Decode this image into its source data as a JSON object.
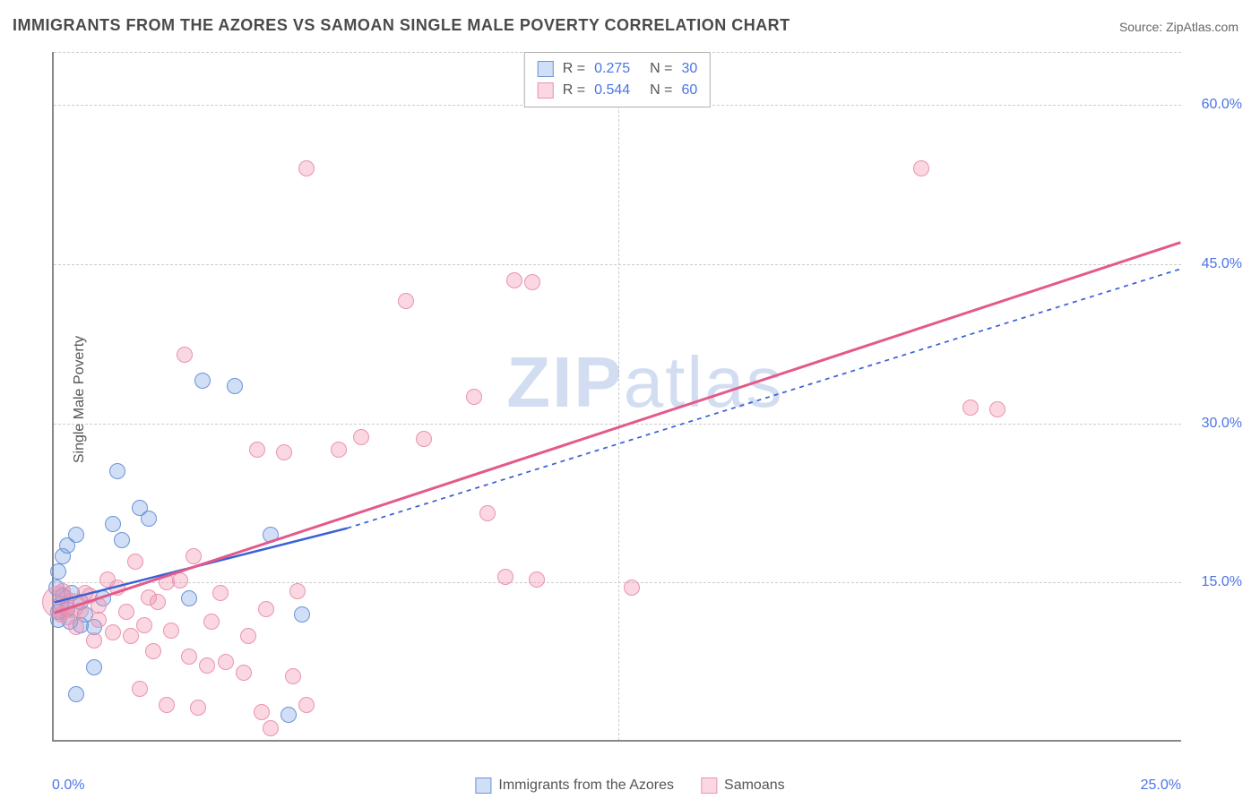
{
  "title": "IMMIGRANTS FROM THE AZORES VS SAMOAN SINGLE MALE POVERTY CORRELATION CHART",
  "source": "Source: ZipAtlas.com",
  "ylabel": "Single Male Poverty",
  "watermark_zip": "ZIP",
  "watermark_atlas": "atlas",
  "chart": {
    "type": "scatter",
    "xlim": [
      0,
      25
    ],
    "ylim": [
      0,
      65
    ],
    "xticks": [
      {
        "v": 0,
        "label": "0.0%"
      },
      {
        "v": 25,
        "label": "25.0%"
      }
    ],
    "yticks": [
      {
        "v": 15,
        "label": "15.0%"
      },
      {
        "v": 30,
        "label": "30.0%"
      },
      {
        "v": 45,
        "label": "45.0%"
      },
      {
        "v": 60,
        "label": "60.0%"
      }
    ],
    "vgrid": [
      12.5
    ],
    "grid_color": "#cccccc",
    "background_color": "#ffffff",
    "axis_color": "#888888",
    "tick_color": "#4a74e8",
    "series": [
      {
        "name": "Immigrants from the Azores",
        "key": "azores",
        "fill": "rgba(120,160,230,0.35)",
        "stroke": "#6a94d8",
        "marker_radius": 9,
        "R": "0.275",
        "N": "30",
        "trend": {
          "x1": 0,
          "y1": 13,
          "x2": 6.5,
          "y2": 20,
          "extend_x": 25,
          "extend_y": 44.5,
          "color": "#3a62d6",
          "dash": "5,5",
          "width": 2.5
        },
        "points": [
          {
            "x": 0.2,
            "y": 17.5
          },
          {
            "x": 0.3,
            "y": 18.5
          },
          {
            "x": 0.1,
            "y": 16
          },
          {
            "x": 0.5,
            "y": 19.5
          },
          {
            "x": 0.15,
            "y": 13
          },
          {
            "x": 0.3,
            "y": 12.5
          },
          {
            "x": 0.1,
            "y": 11.5
          },
          {
            "x": 0.7,
            "y": 12
          },
          {
            "x": 0.6,
            "y": 11
          },
          {
            "x": 0.9,
            "y": 10.8
          },
          {
            "x": 1.4,
            "y": 25.5
          },
          {
            "x": 1.3,
            "y": 20.5
          },
          {
            "x": 1.5,
            "y": 19
          },
          {
            "x": 0.4,
            "y": 14
          },
          {
            "x": 0.2,
            "y": 13.8
          },
          {
            "x": 0.05,
            "y": 14.5
          },
          {
            "x": 1.1,
            "y": 13.5
          },
          {
            "x": 0.9,
            "y": 7
          },
          {
            "x": 0.5,
            "y": 4.5
          },
          {
            "x": 1.9,
            "y": 22
          },
          {
            "x": 2.1,
            "y": 21
          },
          {
            "x": 3.3,
            "y": 34
          },
          {
            "x": 4.0,
            "y": 33.5
          },
          {
            "x": 4.8,
            "y": 19.5
          },
          {
            "x": 5.5,
            "y": 12
          },
          {
            "x": 5.2,
            "y": 2.5
          },
          {
            "x": 3.0,
            "y": 13.5
          },
          {
            "x": 0.1,
            "y": 12.2
          },
          {
            "x": 0.35,
            "y": 11.3
          },
          {
            "x": 0.6,
            "y": 13.2
          }
        ]
      },
      {
        "name": "Samoans",
        "key": "samoans",
        "fill": "rgba(240,140,170,0.35)",
        "stroke": "#e994b0",
        "marker_radius": 9,
        "R": "0.544",
        "N": "60",
        "trend": {
          "x1": 0,
          "y1": 12,
          "x2": 25,
          "y2": 47,
          "color": "#e35a8a",
          "width": 3
        },
        "points": [
          {
            "x": 0.1,
            "y": 13.2,
            "r": 18
          },
          {
            "x": 0.4,
            "y": 12.8,
            "r": 14
          },
          {
            "x": 0.2,
            "y": 14.2
          },
          {
            "x": 0.7,
            "y": 14
          },
          {
            "x": 1.0,
            "y": 12.8
          },
          {
            "x": 1.4,
            "y": 14.5
          },
          {
            "x": 1.6,
            "y": 12.2
          },
          {
            "x": 2.1,
            "y": 13.6
          },
          {
            "x": 2.5,
            "y": 15
          },
          {
            "x": 2.0,
            "y": 11
          },
          {
            "x": 1.3,
            "y": 10.3
          },
          {
            "x": 1.7,
            "y": 10
          },
          {
            "x": 0.9,
            "y": 9.5
          },
          {
            "x": 2.2,
            "y": 8.5
          },
          {
            "x": 2.6,
            "y": 10.5
          },
          {
            "x": 3.0,
            "y": 8
          },
          {
            "x": 3.4,
            "y": 7.2
          },
          {
            "x": 3.8,
            "y": 7.5
          },
          {
            "x": 1.9,
            "y": 5
          },
          {
            "x": 4.2,
            "y": 6.5
          },
          {
            "x": 2.5,
            "y": 3.5
          },
          {
            "x": 3.2,
            "y": 3.2
          },
          {
            "x": 4.6,
            "y": 2.8
          },
          {
            "x": 4.8,
            "y": 1.3
          },
          {
            "x": 5.6,
            "y": 3.5
          },
          {
            "x": 5.3,
            "y": 6.2
          },
          {
            "x": 1.8,
            "y": 17
          },
          {
            "x": 3.1,
            "y": 17.5
          },
          {
            "x": 3.5,
            "y": 11.3
          },
          {
            "x": 4.3,
            "y": 10
          },
          {
            "x": 4.7,
            "y": 12.5
          },
          {
            "x": 5.4,
            "y": 14.2
          },
          {
            "x": 4.5,
            "y": 27.5
          },
          {
            "x": 5.1,
            "y": 27.3
          },
          {
            "x": 6.3,
            "y": 27.5
          },
          {
            "x": 6.8,
            "y": 28.7
          },
          {
            "x": 8.2,
            "y": 28.5
          },
          {
            "x": 2.9,
            "y": 36.5
          },
          {
            "x": 7.8,
            "y": 41.5
          },
          {
            "x": 9.3,
            "y": 32.5
          },
          {
            "x": 9.6,
            "y": 21.5
          },
          {
            "x": 10.2,
            "y": 43.5
          },
          {
            "x": 10.6,
            "y": 43.3
          },
          {
            "x": 10.0,
            "y": 15.5
          },
          {
            "x": 10.7,
            "y": 15.3
          },
          {
            "x": 12.8,
            "y": 14.5
          },
          {
            "x": 5.6,
            "y": 54
          },
          {
            "x": 19.2,
            "y": 54
          },
          {
            "x": 20.3,
            "y": 31.5
          },
          {
            "x": 20.9,
            "y": 31.3
          },
          {
            "x": 0.5,
            "y": 10.8
          },
          {
            "x": 0.8,
            "y": 13.8
          },
          {
            "x": 1.2,
            "y": 15.3
          },
          {
            "x": 0.3,
            "y": 11.7
          },
          {
            "x": 0.15,
            "y": 12.0
          },
          {
            "x": 0.6,
            "y": 12.3
          },
          {
            "x": 1.0,
            "y": 11.5
          },
          {
            "x": 2.3,
            "y": 13.2
          },
          {
            "x": 3.7,
            "y": 14
          },
          {
            "x": 2.8,
            "y": 15.2
          }
        ]
      }
    ]
  },
  "legend_top": {
    "r_label": "R =",
    "n_label": "N ="
  },
  "legend_bottom": [
    {
      "key": "azores",
      "label": "Immigrants from the Azores"
    },
    {
      "key": "samoans",
      "label": "Samoans"
    }
  ]
}
